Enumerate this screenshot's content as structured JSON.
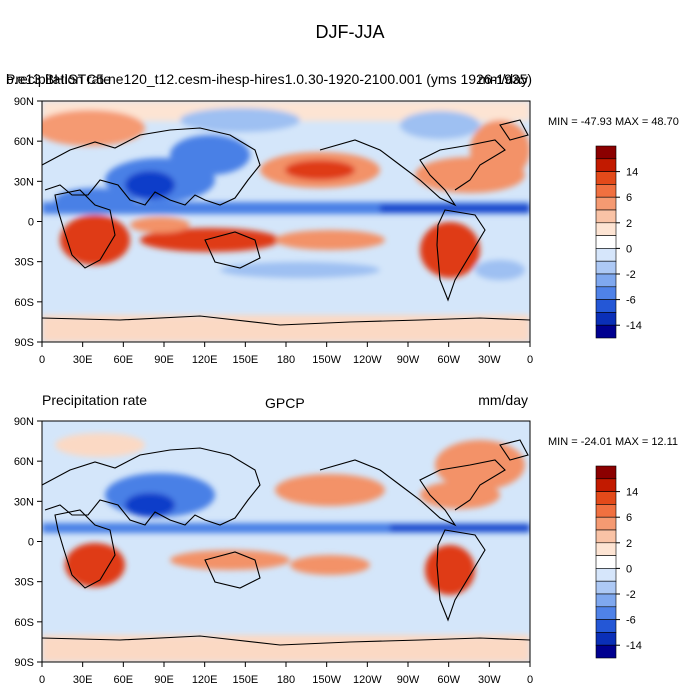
{
  "title": "DJF-JJA",
  "panels": [
    {
      "left_title": "Precipitation rate",
      "overlay_title": "b.e13.BHISTC5.ne120_t12.cesm-ihesp-hires1.0.30-1920-2100.001 (yms 1926-1935)",
      "right_title": "mm/day",
      "minmax": "MIN = -47.93 MAX =  48.70",
      "dataset_label": ""
    },
    {
      "left_title": "Precipitation rate",
      "center_title": "GPCP",
      "right_title": "mm/day",
      "minmax": "MIN = -24.01 MAX =  12.11"
    }
  ],
  "lat_labels": [
    "90N",
    "60N",
    "30N",
    "0",
    "30S",
    "60S",
    "90S"
  ],
  "lon_labels": [
    "0",
    "30E",
    "60E",
    "90E",
    "120E",
    "150E",
    "180",
    "150W",
    "120W",
    "90W",
    "60W",
    "30W",
    "0"
  ],
  "colorbar": {
    "labels": [
      "14",
      "6",
      "2",
      "0",
      "-2",
      "-6",
      "-14"
    ],
    "colors": [
      "#8b0000",
      "#c21a00",
      "#e34a1a",
      "#f07040",
      "#f59a72",
      "#f9c3a6",
      "#fde4d3",
      "#ffffff",
      "#d6e6fb",
      "#adc9f5",
      "#7fa8ef",
      "#4f82e8",
      "#2457d6",
      "#0a2fb8",
      "#000090"
    ]
  },
  "map_colors": {
    "ocean_base": "#d4e6fa",
    "wet_strong": "#0c3dc9",
    "wet": "#4a80e6",
    "wet_light": "#9ec0f2",
    "dry_light": "#fbd9c4",
    "dry": "#f39268",
    "dry_strong": "#df3a12"
  }
}
